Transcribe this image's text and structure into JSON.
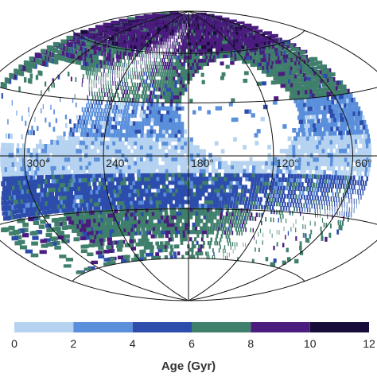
{
  "chart_data": {
    "type": "heatmap",
    "projection": "hammer-aitoff",
    "title": "",
    "longitude_labels": [
      "300°",
      "240°",
      "180°",
      "120°",
      "60°"
    ],
    "longitude_label_values": [
      300,
      240,
      180,
      120,
      60
    ],
    "longitude_gridlines_deg": [
      0,
      60,
      120,
      180,
      240,
      300,
      360
    ],
    "latitude_gridlines_deg": [
      -60,
      -30,
      0,
      30,
      60
    ],
    "grid": true,
    "colorbar": {
      "label": "Age (Gyr)",
      "placement": "bottom",
      "ticks": [
        "0",
        "2",
        "4",
        "6",
        "8",
        "10",
        "12"
      ],
      "bins": [
        {
          "from": 0,
          "to": 2,
          "color": "#b5d3f0"
        },
        {
          "from": 2,
          "to": 4,
          "color": "#5a8fdc"
        },
        {
          "from": 4,
          "to": 6,
          "color": "#2d4dad"
        },
        {
          "from": 6,
          "to": 8,
          "color": "#3f7f6b"
        },
        {
          "from": 8,
          "to": 10,
          "color": "#4a1c7e"
        },
        {
          "from": 10,
          "to": 12,
          "color": "#180c3a"
        }
      ]
    },
    "age_bands_by_latitude": [
      {
        "lat_from": -10,
        "lat_to": 10,
        "age_gyr": 1
      },
      {
        "lat_from": 10,
        "lat_to": 30,
        "age_gyr": 3
      },
      {
        "lat_from": -30,
        "lat_to": -10,
        "age_gyr": 5
      },
      {
        "lat_from": 30,
        "lat_to": 60,
        "age_gyr": 7
      },
      {
        "lat_from": -60,
        "lat_to": -30,
        "age_gyr": 7
      },
      {
        "lat_from": 60,
        "lat_to": 90,
        "age_gyr": 9
      }
    ]
  }
}
